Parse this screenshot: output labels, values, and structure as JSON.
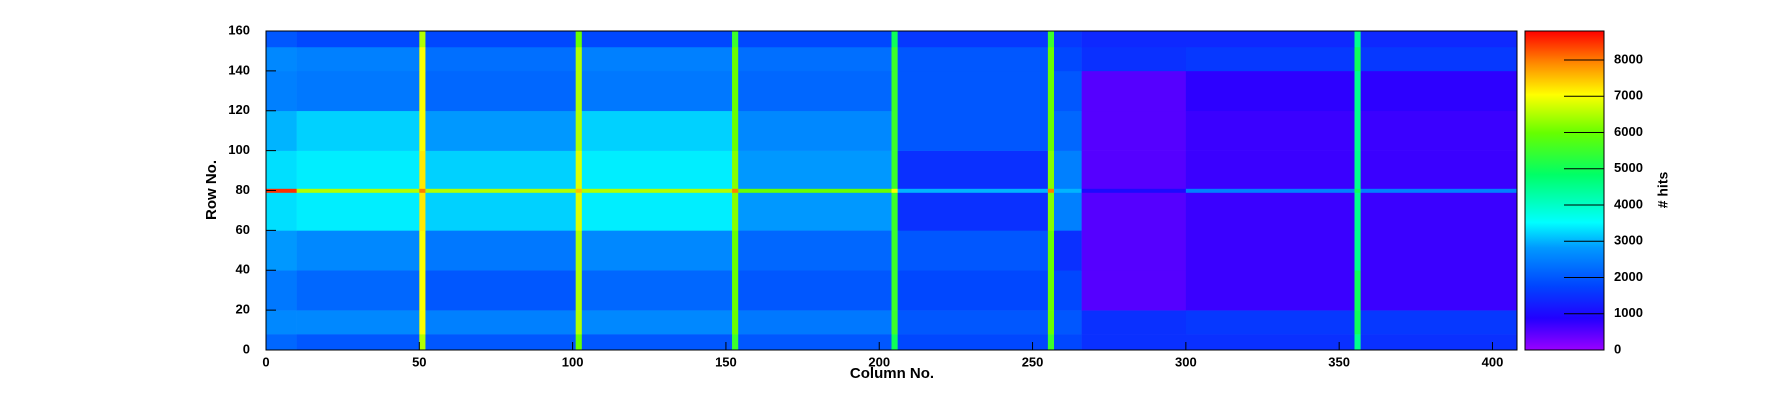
{
  "chart_data": {
    "type": "heatmap",
    "x_label": "Column No.",
    "y_label": "Row No.",
    "z_label": "# hits",
    "x_edges": [
      0,
      10,
      50,
      52,
      101,
      103,
      152,
      154,
      204,
      206,
      255,
      257,
      266,
      300,
      355,
      357,
      408
    ],
    "y_edges": [
      0,
      8,
      20,
      40,
      60,
      79,
      81,
      100,
      120,
      140,
      152,
      160
    ],
    "z": [
      [
        2200,
        2000,
        6500,
        2000,
        6000,
        2000,
        5500,
        2000,
        5000,
        1800,
        5500,
        1800,
        1500,
        1500,
        4500,
        1500
      ],
      [
        2600,
        2600,
        7000,
        2500,
        6500,
        2600,
        6000,
        2400,
        5500,
        2000,
        6000,
        2000,
        1500,
        1600,
        5000,
        1600
      ],
      [
        2400,
        2200,
        7000,
        2000,
        6500,
        2200,
        6000,
        2000,
        5500,
        1800,
        6000,
        1800,
        500,
        700,
        5000,
        700
      ],
      [
        2800,
        2600,
        7000,
        2400,
        6500,
        2600,
        6000,
        2200,
        5500,
        2000,
        6000,
        1500,
        500,
        700,
        4500,
        700
      ],
      [
        3300,
        3400,
        7200,
        3200,
        6800,
        3400,
        6200,
        2800,
        5500,
        1500,
        6200,
        2500,
        500,
        700,
        4500,
        700
      ],
      [
        8500,
        6500,
        8000,
        6500,
        7500,
        6500,
        8000,
        6000,
        7000,
        3000,
        8000,
        3000,
        1000,
        2500,
        5000,
        2500
      ],
      [
        3300,
        3400,
        7200,
        3200,
        6800,
        3400,
        6200,
        2800,
        5500,
        1500,
        6200,
        2500,
        500,
        700,
        4500,
        700
      ],
      [
        3000,
        3200,
        7000,
        2800,
        6500,
        3200,
        6000,
        2600,
        5500,
        2000,
        6000,
        2200,
        500,
        700,
        4500,
        700
      ],
      [
        2500,
        2400,
        7000,
        2200,
        6500,
        2400,
        6000,
        2200,
        5500,
        2000,
        6000,
        2000,
        500,
        800,
        4500,
        800
      ],
      [
        2600,
        2500,
        7000,
        2300,
        6500,
        2500,
        6000,
        2300,
        5500,
        2000,
        6000,
        1800,
        1500,
        1600,
        5000,
        1600
      ],
      [
        2000,
        1800,
        6500,
        1800,
        6000,
        1800,
        5500,
        1800,
        5000,
        1600,
        5500,
        1600,
        1400,
        1400,
        4500,
        1400
      ]
    ],
    "xlim": [
      0,
      408
    ],
    "xticks": [
      0,
      50,
      100,
      150,
      200,
      250,
      300,
      350,
      400
    ],
    "ylim": [
      0,
      160
    ],
    "yticks": [
      0,
      20,
      40,
      60,
      80,
      100,
      120,
      140,
      160
    ],
    "zlim": [
      0,
      8800
    ],
    "zticks": [
      0,
      1000,
      2000,
      3000,
      4000,
      5000,
      6000,
      7000,
      8000
    ],
    "colorscale": [
      [
        0,
        "#9900ff"
      ],
      [
        0.1,
        "#2200ff"
      ],
      [
        0.2,
        "#0044ff"
      ],
      [
        0.32,
        "#0099ff"
      ],
      [
        0.4,
        "#00ffff"
      ],
      [
        0.55,
        "#00ff66"
      ],
      [
        0.68,
        "#66ff00"
      ],
      [
        0.8,
        "#ffff00"
      ],
      [
        0.9,
        "#ff8800"
      ],
      [
        1,
        "#ff0000"
      ]
    ]
  }
}
